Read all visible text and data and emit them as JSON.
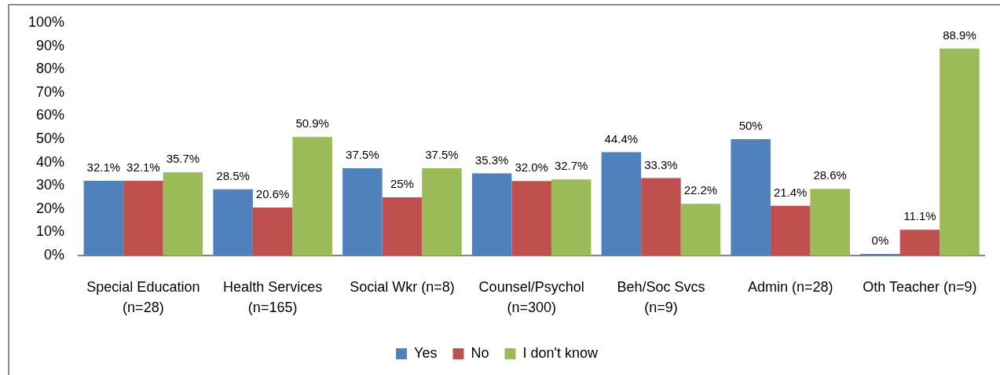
{
  "chart_data": {
    "type": "bar",
    "categories": [
      "Special Education (n=28)",
      "Health Services (n=165)",
      "Social Wkr (n=8)",
      "Counsel/Psychol (n=300)",
      "Beh/Soc Svcs (n=9)",
      "Admin (n=28)",
      "Oth Teacher (n=9)"
    ],
    "series": [
      {
        "name": "Yes",
        "color": "#4f81bd",
        "values": [
          32.1,
          28.5,
          37.5,
          35.3,
          44.4,
          50,
          0
        ],
        "value_labels": [
          "32.1%",
          "28.5%",
          "37.5%",
          "35.3%",
          "44.4%",
          "50%",
          "0%"
        ]
      },
      {
        "name": "No",
        "color": "#c0504d",
        "values": [
          32.1,
          20.6,
          25,
          32.0,
          33.3,
          21.4,
          11.1
        ],
        "value_labels": [
          "32.1%",
          "20.6%",
          "25%",
          "32.0%",
          "33.3%",
          "21.4%",
          "11.1%"
        ]
      },
      {
        "name": "I don't know",
        "color": "#9bbb59",
        "values": [
          35.7,
          50.9,
          37.5,
          32.7,
          22.2,
          28.6,
          88.9
        ],
        "value_labels": [
          "35.7%",
          "50.9%",
          "37.5%",
          "32.7%",
          "22.2%",
          "28.6%",
          "88.9%"
        ]
      }
    ],
    "ylim": [
      0,
      100
    ],
    "yticks": [
      {
        "value": 0,
        "label": "0%"
      },
      {
        "value": 10,
        "label": "10%"
      },
      {
        "value": 20,
        "label": "20%"
      },
      {
        "value": 30,
        "label": "30%"
      },
      {
        "value": 40,
        "label": "40%"
      },
      {
        "value": 50,
        "label": "50%"
      },
      {
        "value": 60,
        "label": "60%"
      },
      {
        "value": 70,
        "label": "70%"
      },
      {
        "value": 80,
        "label": "80%"
      },
      {
        "value": 90,
        "label": "90%"
      },
      {
        "value": 100,
        "label": "100%"
      }
    ],
    "grid": false,
    "legend": "bottom"
  }
}
